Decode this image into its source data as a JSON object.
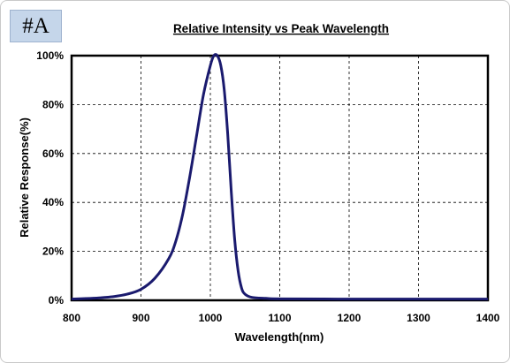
{
  "tag_label": "#A",
  "chart_data": {
    "type": "line",
    "title": "Relative Intensity vs Peak Wavelength",
    "xlabel": "Wavelength(nm)",
    "ylabel": "Relative Response(%)",
    "xlim": [
      800,
      1400
    ],
    "ylim": [
      0,
      100
    ],
    "x_ticks": [
      800,
      900,
      1000,
      1100,
      1200,
      1300,
      1400
    ],
    "y_ticks": [
      0,
      20,
      40,
      60,
      80,
      100
    ],
    "y_tick_labels": [
      "0%",
      "20%",
      "40%",
      "60%",
      "80%",
      "100%"
    ],
    "grid": true,
    "line_color": "#1a1a6e",
    "series": [
      {
        "x": [
          800,
          820,
          840,
          860,
          880,
          900,
          920,
          940,
          950,
          960,
          970,
          980,
          990,
          1000,
          1005,
          1010,
          1015,
          1020,
          1025,
          1030,
          1035,
          1040,
          1045,
          1050,
          1060,
          1080,
          1100,
          1200,
          1300,
          1400
        ],
        "y": [
          0.5,
          0.7,
          1,
          1.5,
          2.5,
          4.5,
          9,
          17,
          24,
          35,
          50,
          67,
          84,
          96,
          100,
          100,
          96,
          86,
          68,
          45,
          25,
          12,
          5,
          2.5,
          1.2,
          0.8,
          0.6,
          0.5,
          0.5,
          0.5
        ]
      }
    ]
  }
}
